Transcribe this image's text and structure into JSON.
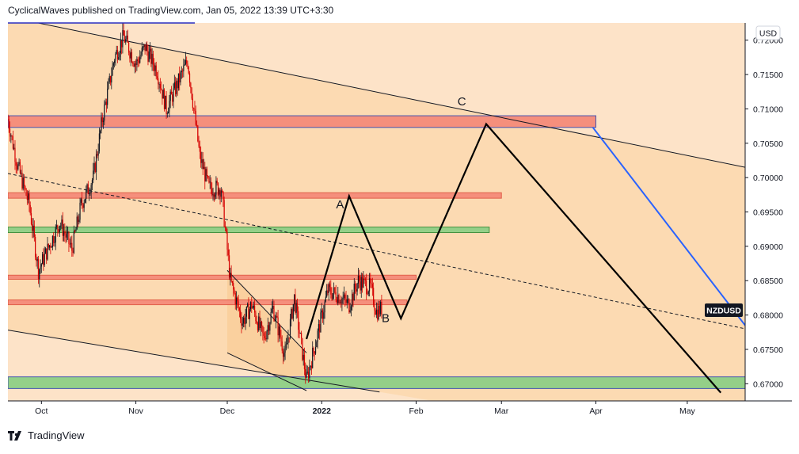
{
  "header": {
    "published_text": "CyclicalWaves published on TradingView.com, Jan 05, 2022 13:39 UTC+3:30"
  },
  "footer": {
    "brand": "TradingView",
    "logo_icon": "tradingview-logo-icon"
  },
  "colors": {
    "background_top": "#fde3c8",
    "channel_fill": "#fbd8ae",
    "candle_up": "#131722",
    "candle_down": "#d50000",
    "zone_red": "#f58b7a",
    "zone_green": "#8fcf86",
    "projection": "#000000",
    "blue_line": "#2962ff",
    "price_tag": "#131722"
  },
  "chart_data": {
    "type": "candlestick",
    "symbol": "NZDUSD",
    "currency": "USD",
    "x_ticks": [
      "Oct",
      "Nov",
      "Dec",
      "2022",
      "Feb",
      "Mar",
      "Apr",
      "May"
    ],
    "x_tick_dates": [
      "2021-10-01",
      "2021-11-01",
      "2021-12-01",
      "2022-01-01",
      "2022-02-01",
      "2022-03-01",
      "2022-04-01",
      "2022-05-01"
    ],
    "y_ticks": [
      0.72,
      0.715,
      0.71,
      0.705,
      0.7,
      0.695,
      0.69,
      0.685,
      0.68,
      0.675,
      0.67
    ],
    "y_tick_labels": [
      "0.72000",
      "0.71500",
      "0.71000",
      "0.70500",
      "0.70000",
      "0.69500",
      "0.69000",
      "0.68500",
      "0.68000",
      "0.67500",
      "0.67000"
    ],
    "ylim": [
      0.6675,
      0.7225
    ],
    "xlim": [
      "2021-09-20",
      "2022-05-20"
    ],
    "last_price_label": "NZDUSD",
    "price_path": [
      [
        "2021-09-20",
        0.7085
      ],
      [
        "2021-09-23",
        0.702
      ],
      [
        "2021-09-27",
        0.696
      ],
      [
        "2021-09-30",
        0.6865
      ],
      [
        "2021-10-04",
        0.6905
      ],
      [
        "2021-10-07",
        0.6935
      ],
      [
        "2021-10-11",
        0.6895
      ],
      [
        "2021-10-14",
        0.696
      ],
      [
        "2021-10-18",
        0.7
      ],
      [
        "2021-10-21",
        0.7085
      ],
      [
        "2021-10-25",
        0.7175
      ],
      [
        "2021-10-28",
        0.7205
      ],
      [
        "2021-11-01",
        0.7165
      ],
      [
        "2021-11-04",
        0.719
      ],
      [
        "2021-11-08",
        0.7155
      ],
      [
        "2021-11-11",
        0.71
      ],
      [
        "2021-11-15",
        0.714
      ],
      [
        "2021-11-18",
        0.717
      ],
      [
        "2021-11-22",
        0.703
      ],
      [
        "2021-11-25",
        0.6985
      ],
      [
        "2021-11-29",
        0.6985
      ],
      [
        "2021-12-02",
        0.685
      ],
      [
        "2021-12-06",
        0.679
      ],
      [
        "2021-12-09",
        0.6815
      ],
      [
        "2021-12-13",
        0.6765
      ],
      [
        "2021-12-16",
        0.681
      ],
      [
        "2021-12-20",
        0.674
      ],
      [
        "2021-12-23",
        0.6825
      ],
      [
        "2021-12-27",
        0.6705
      ],
      [
        "2021-12-30",
        0.676
      ],
      [
        "2022-01-03",
        0.6835
      ],
      [
        "2022-01-06",
        0.683
      ],
      [
        "2022-01-10",
        0.6815
      ],
      [
        "2022-01-13",
        0.685
      ],
      [
        "2022-01-17",
        0.684
      ],
      [
        "2022-01-19",
        0.6805
      ],
      [
        "2022-01-21",
        0.681
      ]
    ],
    "zones": [
      {
        "color": "red",
        "from": "2021-09-20",
        "to": "2022-04-01",
        "top": 0.709,
        "bottom": 0.7073
      },
      {
        "color": "red",
        "from": "2021-09-20",
        "to": "2022-03-01",
        "top": 0.6978,
        "bottom": 0.697
      },
      {
        "color": "green",
        "from": "2021-09-20",
        "to": "2022-02-25",
        "top": 0.6928,
        "bottom": 0.692
      },
      {
        "color": "red",
        "from": "2021-09-20",
        "to": "2022-02-01",
        "top": 0.6858,
        "bottom": 0.6852
      },
      {
        "color": "red",
        "from": "2021-09-20",
        "to": "2022-01-29",
        "top": 0.6822,
        "bottom": 0.6815
      },
      {
        "color": "green",
        "from": "2021-09-20",
        "to": "2022-05-20",
        "top": 0.671,
        "bottom": 0.6693
      }
    ],
    "channel_upper": [
      [
        "2021-09-20",
        0.7234
      ],
      [
        "2022-05-20",
        0.7015
      ]
    ],
    "channel_lower": [
      [
        "2021-09-20",
        0.6778
      ],
      [
        "2022-01-20",
        0.6688
      ]
    ],
    "channel_mid": [
      [
        "2021-09-20",
        0.7006
      ],
      [
        "2022-05-20",
        0.678
      ]
    ],
    "wedge_upper": [
      [
        "2021-12-01",
        0.6865
      ],
      [
        "2021-12-27",
        0.6745
      ]
    ],
    "wedge_lower": [
      [
        "2021-12-01",
        0.6745
      ],
      [
        "2021-12-27",
        0.669
      ]
    ],
    "projection": [
      [
        "2021-12-27",
        0.6765
      ],
      [
        "2022-01-10",
        0.6973
      ],
      [
        "2022-01-27",
        0.6795
      ],
      [
        "2022-02-24",
        0.7078
      ],
      [
        "2022-05-12",
        0.6687
      ]
    ],
    "blue_line": [
      [
        "2022-03-31",
        0.7073
      ],
      [
        "2022-05-20",
        0.6785
      ]
    ],
    "annotations": [
      {
        "text": "A",
        "date": "2022-01-07",
        "price": 0.6955
      },
      {
        "text": "B",
        "date": "2022-01-22",
        "price": 0.679
      },
      {
        "text": "C",
        "date": "2022-02-16",
        "price": 0.7105
      }
    ]
  }
}
